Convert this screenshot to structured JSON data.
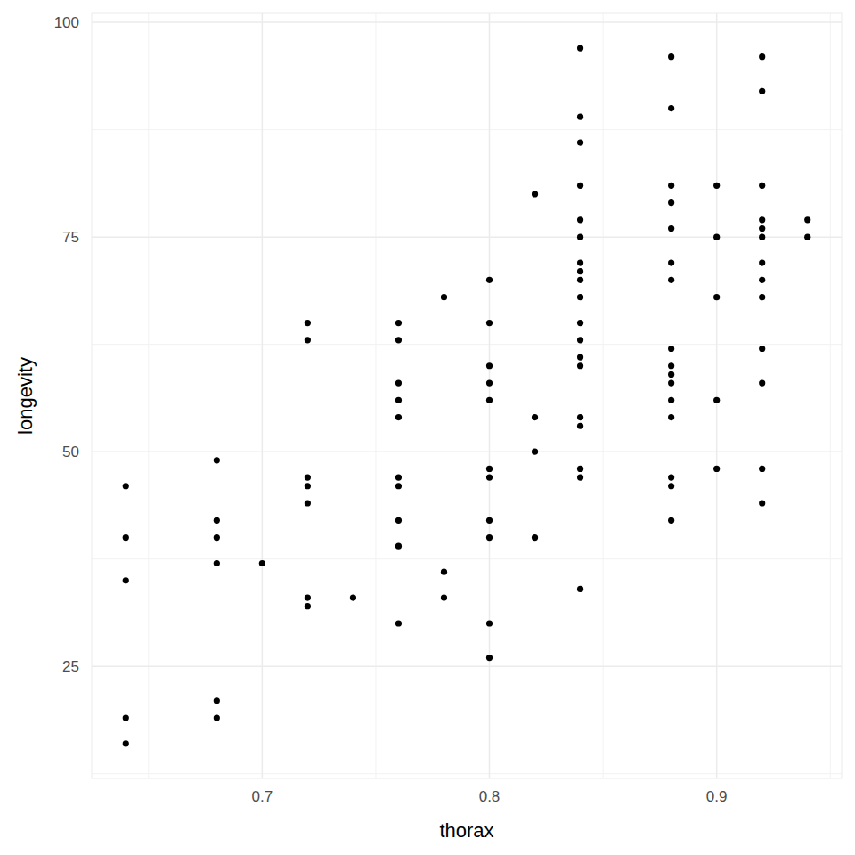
{
  "chart_data": {
    "type": "scatter",
    "xlabel": "thorax",
    "ylabel": "longevity",
    "x": [
      0.64,
      0.64,
      0.64,
      0.64,
      0.64,
      0.68,
      0.68,
      0.68,
      0.68,
      0.68,
      0.68,
      0.7,
      0.72,
      0.72,
      0.72,
      0.72,
      0.72,
      0.72,
      0.72,
      0.74,
      0.76,
      0.76,
      0.76,
      0.76,
      0.76,
      0.76,
      0.76,
      0.76,
      0.76,
      0.76,
      0.78,
      0.78,
      0.78,
      0.8,
      0.8,
      0.8,
      0.8,
      0.8,
      0.8,
      0.8,
      0.8,
      0.8,
      0.8,
      0.8,
      0.82,
      0.82,
      0.82,
      0.82,
      0.84,
      0.84,
      0.84,
      0.84,
      0.84,
      0.84,
      0.84,
      0.84,
      0.84,
      0.84,
      0.84,
      0.84,
      0.84,
      0.84,
      0.84,
      0.84,
      0.84,
      0.84,
      0.84,
      0.88,
      0.88,
      0.88,
      0.88,
      0.88,
      0.88,
      0.88,
      0.88,
      0.88,
      0.88,
      0.88,
      0.88,
      0.88,
      0.88,
      0.88,
      0.88,
      0.9,
      0.9,
      0.9,
      0.9,
      0.9,
      0.92,
      0.92,
      0.92,
      0.92,
      0.92,
      0.92,
      0.92,
      0.92,
      0.92,
      0.92,
      0.92,
      0.92,
      0.92,
      0.94,
      0.94
    ],
    "values": [
      46,
      40,
      35,
      19,
      16,
      49,
      42,
      40,
      37,
      21,
      19,
      37,
      65,
      63,
      47,
      46,
      44,
      33,
      32,
      33,
      65,
      63,
      58,
      56,
      54,
      47,
      46,
      42,
      39,
      30,
      68,
      36,
      33,
      70,
      65,
      60,
      58,
      56,
      48,
      47,
      42,
      40,
      30,
      26,
      80,
      54,
      50,
      40,
      97,
      89,
      86,
      81,
      77,
      75,
      72,
      71,
      70,
      68,
      65,
      63,
      61,
      60,
      54,
      53,
      48,
      47,
      34,
      96,
      90,
      81,
      79,
      76,
      72,
      70,
      62,
      60,
      59,
      58,
      56,
      54,
      47,
      46,
      42,
      81,
      75,
      68,
      56,
      48,
      96,
      92,
      81,
      77,
      76,
      75,
      72,
      70,
      68,
      62,
      58,
      48,
      44,
      77,
      75
    ],
    "color": "#000000",
    "xlim": [
      0.625,
      0.955
    ],
    "ylim": [
      11.95,
      101.05
    ],
    "xticks": [
      0.7,
      0.8,
      0.9
    ],
    "yticks": [
      25,
      50,
      75,
      100
    ],
    "grid": true
  }
}
